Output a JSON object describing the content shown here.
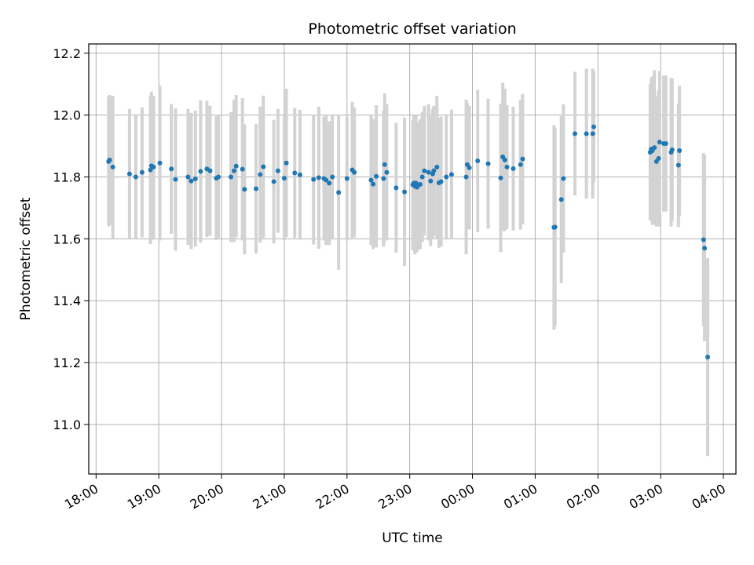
{
  "chart_data": {
    "type": "scatter",
    "title": "Photometric offset variation",
    "xlabel": "UTC time",
    "ylabel": "Photometric offset",
    "x_ticks": [
      "18:00",
      "19:00",
      "20:00",
      "21:00",
      "22:00",
      "23:00",
      "00:00",
      "01:00",
      "02:00",
      "03:00",
      "04:00"
    ],
    "y_ticks": [
      "11.0",
      "11.2",
      "11.4",
      "11.6",
      "11.8",
      "12.0",
      "12.2"
    ],
    "xlim": [
      "17:53",
      "04:12"
    ],
    "ylim": [
      10.84,
      12.23
    ],
    "grid": true,
    "colors": {
      "point": "#1f77b4",
      "errorbar": "#d3d3d3",
      "grid": "#b0b0b0"
    },
    "series": [
      {
        "x": [
          "18:12",
          "18:13",
          "18:16",
          "18:32",
          "18:38",
          "18:44",
          "18:52",
          "18:53",
          "18:55",
          "19:01",
          "19:12",
          "19:16",
          "19:28",
          "19:31",
          "19:35",
          "19:40",
          "19:46",
          "19:49",
          "19:55",
          "19:57",
          "20:09",
          "20:12",
          "20:14",
          "20:20",
          "20:22",
          "20:33",
          "20:37",
          "20:40",
          "20:50",
          "20:54",
          "21:00",
          "21:02",
          "21:10",
          "21:15",
          "21:28",
          "21:33",
          "21:38",
          "21:40",
          "21:43",
          "21:46",
          "21:52",
          "22:00",
          "22:05",
          "22:07",
          "22:23",
          "22:25",
          "22:28",
          "22:35",
          "22:36",
          "22:38",
          "22:47",
          "22:55",
          "23:03",
          "23:04",
          "23:05",
          "23:06",
          "23:07",
          "23:10",
          "23:12",
          "23:14",
          "23:18",
          "23:20",
          "23:22",
          "23:23",
          "23:26",
          "23:28",
          "23:30",
          "23:35",
          "23:40",
          "23:54",
          "23:55",
          "23:57",
          "00:05",
          "00:15",
          "00:27",
          "00:29",
          "00:31",
          "00:33",
          "00:39",
          "00:46",
          "00:48",
          "01:18",
          "01:19",
          "01:25",
          "01:27",
          "01:38",
          "01:49",
          "01:55",
          "01:56",
          "02:50",
          "02:51",
          "02:52",
          "02:54",
          "02:56",
          "02:58",
          "02:59",
          "03:03",
          "03:05",
          "03:10",
          "03:11",
          "03:17",
          "03:18",
          "03:41",
          "03:42",
          "03:45"
        ],
        "y": [
          11.85,
          11.855,
          11.832,
          11.81,
          11.8,
          11.815,
          11.823,
          11.836,
          11.832,
          11.845,
          11.826,
          11.792,
          11.8,
          11.787,
          11.794,
          11.818,
          11.826,
          11.82,
          11.796,
          11.8,
          11.8,
          11.82,
          11.835,
          11.825,
          11.76,
          11.762,
          11.808,
          11.833,
          11.785,
          11.82,
          11.796,
          11.845,
          11.813,
          11.807,
          11.792,
          11.798,
          11.795,
          11.79,
          11.78,
          11.8,
          11.75,
          11.795,
          11.823,
          11.815,
          11.79,
          11.777,
          11.802,
          11.795,
          11.84,
          11.815,
          11.765,
          11.752,
          11.775,
          11.78,
          11.77,
          11.78,
          11.767,
          11.776,
          11.8,
          11.82,
          11.815,
          11.787,
          11.81,
          11.82,
          11.832,
          11.781,
          11.785,
          11.8,
          11.808,
          11.8,
          11.84,
          11.83,
          11.852,
          11.843,
          11.797,
          11.865,
          11.855,
          11.832,
          11.827,
          11.84,
          11.858,
          11.637,
          11.638,
          11.727,
          11.795,
          11.94,
          11.94,
          11.94,
          11.962,
          11.88,
          11.89,
          11.885,
          11.895,
          11.85,
          11.86,
          11.913,
          11.908,
          11.908,
          11.88,
          11.888,
          11.838,
          11.885,
          11.597,
          11.57,
          11.218
        ],
        "err": [
          0.21,
          0.21,
          0.23,
          0.21,
          0.2,
          0.21,
          0.24,
          0.24,
          0.23,
          0.25,
          0.21,
          0.23,
          0.22,
          0.22,
          0.22,
          0.23,
          0.22,
          0.21,
          0.2,
          0.2,
          0.21,
          0.23,
          0.23,
          0.23,
          0.21,
          0.21,
          0.22,
          0.23,
          0.2,
          0.2,
          0.2,
          0.24,
          0.21,
          0.21,
          0.21,
          0.23,
          0.2,
          0.21,
          0.2,
          0.2,
          0.25,
          0.2,
          0.22,
          0.21,
          0.21,
          0.21,
          0.23,
          0.22,
          0.23,
          0.22,
          0.21,
          0.24,
          0.21,
          0.22,
          0.22,
          0.22,
          0.21,
          0.21,
          0.21,
          0.21,
          0.22,
          0.21,
          0.21,
          0.21,
          0.23,
          0.21,
          0.21,
          0.2,
          0.21,
          0.25,
          0.2,
          0.2,
          0.23,
          0.21,
          0.24,
          0.24,
          0.23,
          0.2,
          0.2,
          0.21,
          0.21,
          0.33,
          0.32,
          0.27,
          0.24,
          0.2,
          0.21,
          0.21,
          0.18,
          0.22,
          0.23,
          0.24,
          0.25,
          0.21,
          0.22,
          0.23,
          0.22,
          0.22,
          0.24,
          0.23,
          0.2,
          0.21,
          0.28,
          0.3,
          0.32
        ]
      }
    ]
  }
}
